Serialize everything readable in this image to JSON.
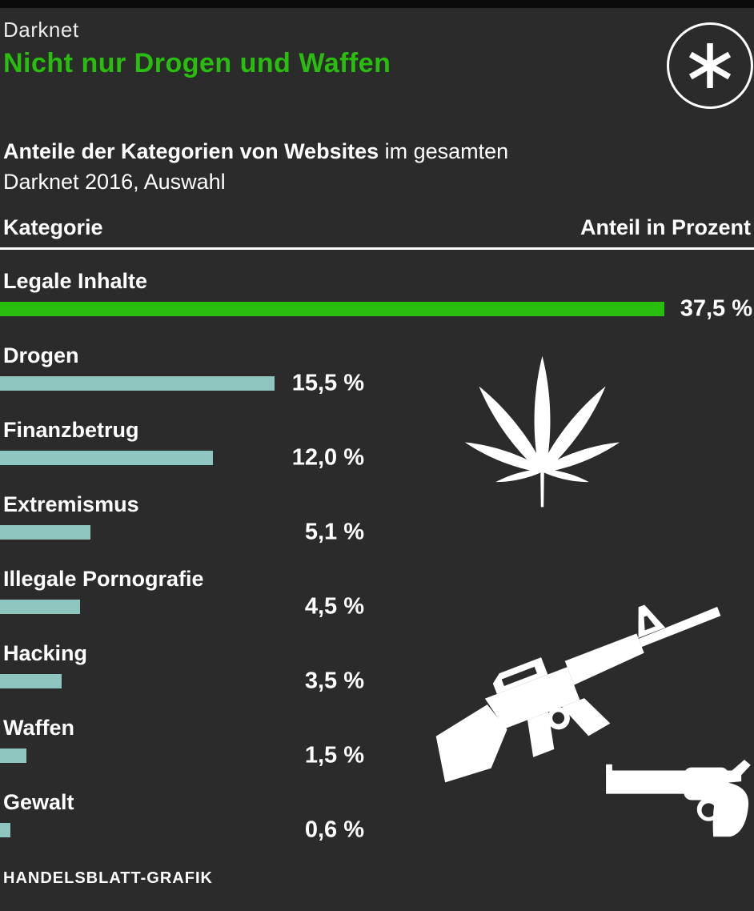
{
  "header": {
    "kicker": "Darknet",
    "title": "Nicht nur Drogen und Waffen"
  },
  "subtitle": {
    "bold": "Anteile der Kategorien von Websites",
    "rest_line1": " im gesamten",
    "line2": "Darknet 2016, Auswahl"
  },
  "table_header": {
    "left": "Kategorie",
    "right": "Anteil in Prozent"
  },
  "footer": {
    "credit": "HANDELSBLATT-GRAFIK"
  },
  "colors": {
    "background": "#2b2b2b",
    "top_bar": "#0b0b0b",
    "accent_green": "#29bd0e",
    "bar_teal": "#8ec5bf",
    "text": "#ffffff"
  },
  "icons": [
    "asterisk-icon",
    "cannabis-leaf-icon",
    "rifle-icon",
    "revolver-icon"
  ],
  "chart_data": {
    "type": "bar",
    "orientation": "horizontal",
    "title": "Nicht nur Drogen und Waffen",
    "subtitle": "Anteile der Kategorien von Websites im gesamten Darknet 2016, Auswahl",
    "xlabel": "Anteil in Prozent",
    "ylabel": "Kategorie",
    "categories": [
      "Legale Inhalte",
      "Drogen",
      "Finanzbetrug",
      "Extremismus",
      "Illegale Pornografie",
      "Hacking",
      "Waffen",
      "Gewalt"
    ],
    "values": [
      37.5,
      15.5,
      12.0,
      5.1,
      4.5,
      3.5,
      1.5,
      0.6
    ],
    "value_labels": [
      "37,5 %",
      "15,5 %",
      "12,0 %",
      "5,1 %",
      "4,5 %",
      "3,5 %",
      "1,5 %",
      "0,6 %"
    ],
    "max": 37.5,
    "highlight_index": 0,
    "grid": false,
    "legend": false,
    "source": "HANDELSBLATT-GRAFIK"
  }
}
